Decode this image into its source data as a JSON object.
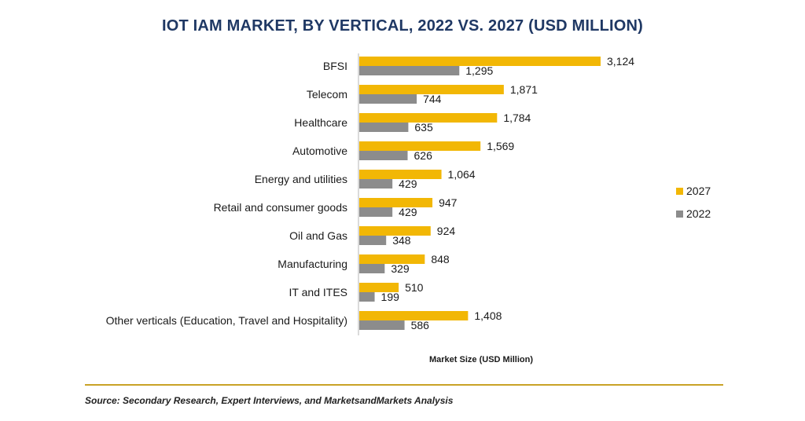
{
  "chart_data": {
    "type": "bar",
    "orientation": "horizontal",
    "title": "IOT IAM MARKET, BY VERTICAL, 2022 VS. 2027 (USD MILLION)",
    "xlabel": "Market Size (USD Million)",
    "categories": [
      "BFSI",
      "Telecom",
      "Healthcare",
      "Automotive",
      "Energy and utilities",
      "Retail and consumer goods",
      "Oil and Gas",
      "Manufacturing",
      "IT and ITES",
      "Other verticals (Education, Travel and Hospitality)"
    ],
    "series": [
      {
        "name": "2027",
        "color": "#f2b705",
        "values": [
          3124,
          1871,
          1784,
          1569,
          1064,
          947,
          924,
          848,
          510,
          1408
        ],
        "labels": [
          "3,124",
          "1,871",
          "1,784",
          "1,569",
          "1,064",
          "947",
          "924",
          "848",
          "510",
          "1,408"
        ]
      },
      {
        "name": "2022",
        "color": "#8c8c8c",
        "values": [
          1295,
          744,
          635,
          626,
          429,
          429,
          348,
          329,
          199,
          586
        ],
        "labels": [
          "1,295",
          "744",
          "635",
          "626",
          "429",
          "429",
          "348",
          "329",
          "199",
          "586"
        ]
      }
    ],
    "xlim": [
      0,
      3124
    ],
    "grid": false,
    "legend_position": "right"
  },
  "source": "Source: Secondary Research, Expert Interviews, and MarketsandMarkets Analysis"
}
